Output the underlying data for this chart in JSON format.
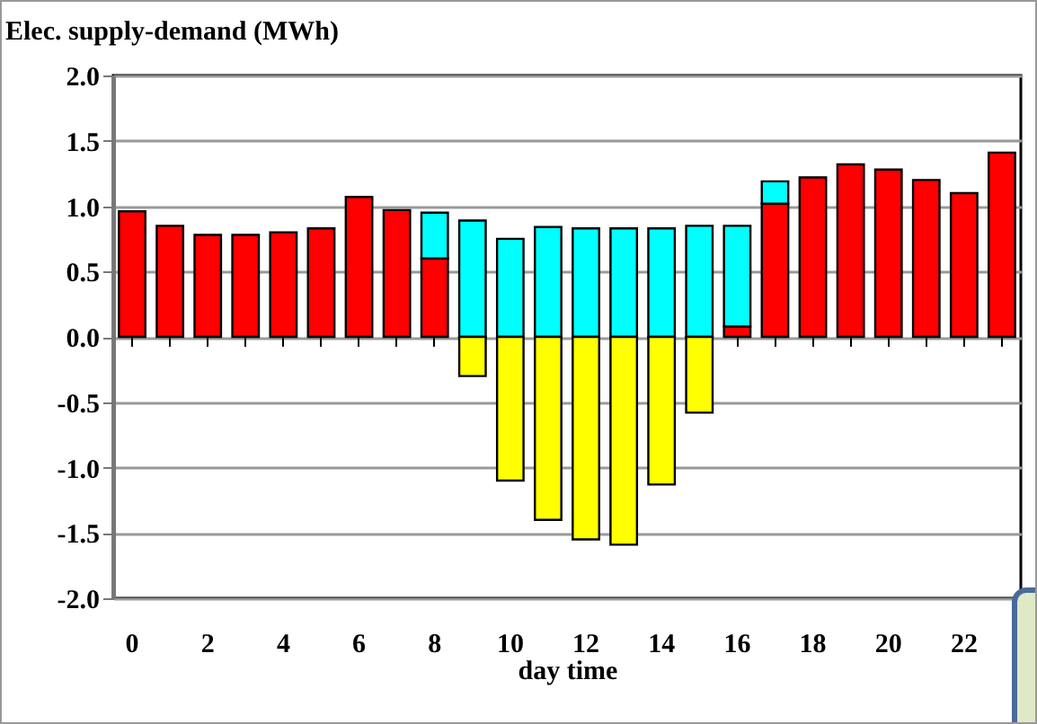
{
  "chart_data": {
    "type": "bar",
    "title": "Elec. supply-demand (MWh)",
    "xlabel": "day time",
    "stacked": true,
    "grid": "y",
    "categories": [
      "0",
      null,
      "2",
      null,
      "4",
      null,
      "6",
      null,
      "8",
      null,
      "10",
      null,
      "12",
      null,
      "14",
      null,
      "16",
      null,
      "18",
      null,
      "20",
      null,
      "22",
      null
    ],
    "ylim": [
      -2.0,
      2.0
    ],
    "yticks": [
      {
        "value": -2,
        "label": "-2.0"
      },
      {
        "value": -1.5,
        "label": "-1.5"
      },
      {
        "value": -1,
        "label": "-1.0"
      },
      {
        "value": -0.5,
        "label": "-0.5"
      },
      {
        "value": 0,
        "label": "0.0"
      },
      {
        "value": 0.5,
        "label": "0.5"
      },
      {
        "value": 1,
        "label": "1.0"
      },
      {
        "value": 1.5,
        "label": "1.5"
      },
      {
        "value": 2,
        "label": "2.0"
      }
    ],
    "series": [
      {
        "color": "#ff0000",
        "values": [
          0.96,
          0.85,
          0.78,
          0.78,
          0.8,
          0.83,
          1.07,
          0.97,
          0.6,
          null,
          null,
          null,
          null,
          null,
          null,
          null,
          0.08,
          1.02,
          1.22,
          1.32,
          1.28,
          1.2,
          1.1,
          1.41
        ]
      },
      {
        "color": "#00ffff",
        "values": [
          null,
          null,
          null,
          null,
          null,
          null,
          null,
          null,
          0.35,
          0.89,
          0.75,
          0.84,
          0.83,
          0.83,
          0.83,
          0.85,
          0.77,
          0.17,
          null,
          null,
          null,
          null,
          null,
          null
        ]
      },
      {
        "color": "#ffff00",
        "values": [
          null,
          null,
          null,
          null,
          null,
          null,
          null,
          null,
          null,
          -0.3,
          -1.1,
          -1.4,
          -1.55,
          -1.59,
          -1.13,
          -0.58,
          null,
          null,
          null,
          null,
          null,
          null,
          null,
          null
        ]
      }
    ]
  }
}
